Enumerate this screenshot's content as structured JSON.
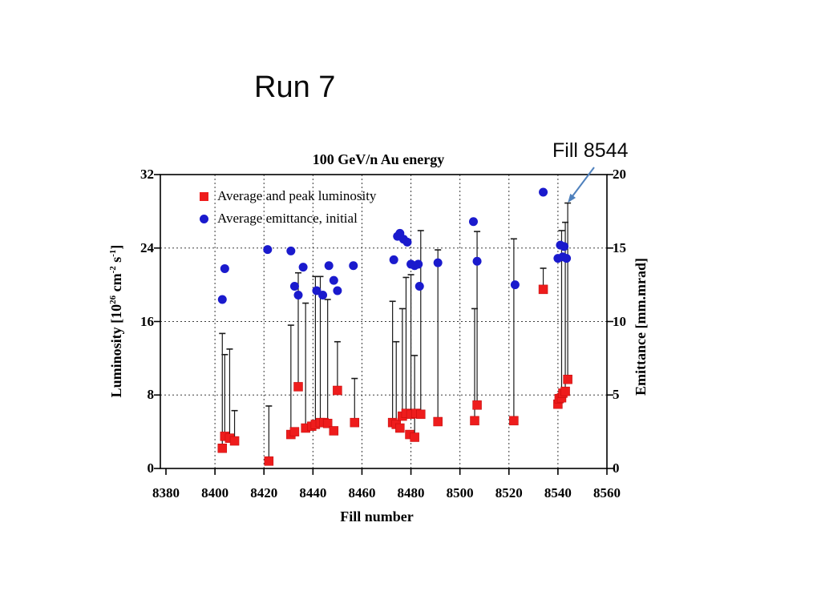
{
  "slide": {
    "title": "Run 7"
  },
  "chart_data": {
    "type": "scatter",
    "title": "100 GeV/n Au energy",
    "xlabel": "Fill number",
    "ylabel_left": "Luminosity [10^26 cm^-2 s^-1]",
    "ylabel_left_parts": [
      {
        "t": "Luminosity [10"
      },
      {
        "t": "26",
        "sup": true
      },
      {
        "t": " cm"
      },
      {
        "t": "-2",
        "sup": true
      },
      {
        "t": " s"
      },
      {
        "t": "-1",
        "sup": true
      },
      {
        "t": "]"
      }
    ],
    "ylabel_right": "Emittance [mm.mrad]",
    "xlim": [
      8378,
      8560
    ],
    "xticks": [
      8380,
      8400,
      8420,
      8440,
      8460,
      8480,
      8500,
      8520,
      8540,
      8560
    ],
    "ylim_left": [
      0,
      32
    ],
    "yticks_left": [
      0,
      8,
      16,
      24,
      32
    ],
    "ylim_right": [
      0,
      20
    ],
    "yticks_right": [
      0,
      5,
      10,
      15,
      20
    ],
    "grid": {
      "x_gridlines": [
        8400,
        8420,
        8440,
        8460,
        8480,
        8500,
        8520,
        8540
      ],
      "y_gridlines_left": [
        8,
        16,
        24
      ]
    },
    "legend": {
      "position": "top-left-inside",
      "items": [
        {
          "label": "Average and peak luminosity",
          "marker": "square",
          "color": "#ee1c1c"
        },
        {
          "label": "Average emittance, initial",
          "marker": "circle",
          "color": "#1a1acd"
        }
      ]
    },
    "series": [
      {
        "name": "Average and peak luminosity",
        "axis": "left",
        "marker": "square",
        "color": "#ee1c1c",
        "error_bar_color": "#1a1a1a",
        "points": [
          {
            "fill": 8403,
            "avg": 2.2,
            "peak": 14.7
          },
          {
            "fill": 8404,
            "avg": 3.5,
            "peak": 12.4
          },
          {
            "fill": 8406,
            "avg": 3.3,
            "peak": 13.0
          },
          {
            "fill": 8408,
            "avg": 3.0,
            "peak": 6.3
          },
          {
            "fill": 8422,
            "avg": 0.8,
            "peak": 6.8
          },
          {
            "fill": 8431,
            "avg": 3.7,
            "peak": 15.6
          },
          {
            "fill": 8432.5,
            "avg": 4.0,
            "peak": null
          },
          {
            "fill": 8434,
            "avg": 8.9,
            "peak": 21.3
          },
          {
            "fill": 8437,
            "avg": 4.4,
            "peak": 18.0
          },
          {
            "fill": 8439.5,
            "avg": 4.6,
            "peak": null
          },
          {
            "fill": 8441,
            "avg": 4.8,
            "peak": 20.9
          },
          {
            "fill": 8443,
            "avg": 5.0,
            "peak": 20.9
          },
          {
            "fill": 8444.5,
            "avg": 5.0,
            "peak": null
          },
          {
            "fill": 8446,
            "avg": 4.9,
            "peak": 18.4
          },
          {
            "fill": 8448.5,
            "avg": 4.1,
            "peak": null
          },
          {
            "fill": 8450,
            "avg": 8.5,
            "peak": 13.8
          },
          {
            "fill": 8457,
            "avg": 5.0,
            "peak": 9.8
          },
          {
            "fill": 8472.5,
            "avg": 5.0,
            "peak": 18.2
          },
          {
            "fill": 8474,
            "avg": 4.8,
            "peak": 13.8
          },
          {
            "fill": 8475.5,
            "avg": 4.4,
            "peak": null
          },
          {
            "fill": 8476.5,
            "avg": 5.7,
            "peak": 17.4
          },
          {
            "fill": 8478,
            "avg": 6.0,
            "peak": 20.8
          },
          {
            "fill": 8479.5,
            "avg": 3.7,
            "peak": null
          },
          {
            "fill": 8480,
            "avg": 5.9,
            "peak": 21.1
          },
          {
            "fill": 8481.5,
            "avg": 3.4,
            "peak": 12.3
          },
          {
            "fill": 8482,
            "avg": 6.0,
            "peak": null
          },
          {
            "fill": 8484,
            "avg": 5.9,
            "peak": 25.9
          },
          {
            "fill": 8491,
            "avg": 5.1,
            "peak": 23.8
          },
          {
            "fill": 8506,
            "avg": 5.2,
            "peak": 17.4
          },
          {
            "fill": 8507,
            "avg": 6.9,
            "peak": 25.8
          },
          {
            "fill": 8522,
            "avg": 5.2,
            "peak": 25.0
          },
          {
            "fill": 8534,
            "avg": 19.5,
            "peak": 21.8
          },
          {
            "fill": 8540,
            "avg": 7.0,
            "peak": null
          },
          {
            "fill": 8540.5,
            "avg": 7.6,
            "peak": null
          },
          {
            "fill": 8541.5,
            "avg": 7.7,
            "peak": 25.9
          },
          {
            "fill": 8542,
            "avg": 8.2,
            "peak": null
          },
          {
            "fill": 8543,
            "avg": 8.4,
            "peak": 26.8
          },
          {
            "fill": 8544,
            "avg": 9.7,
            "peak": 28.9
          }
        ]
      },
      {
        "name": "Average emittance, initial",
        "axis": "right",
        "marker": "circle",
        "color": "#1a1acd",
        "points": [
          {
            "fill": 8403,
            "value": 11.5
          },
          {
            "fill": 8404,
            "value": 13.6
          },
          {
            "fill": 8421.5,
            "value": 14.9
          },
          {
            "fill": 8431,
            "value": 14.8
          },
          {
            "fill": 8432.5,
            "value": 12.4
          },
          {
            "fill": 8434,
            "value": 11.8
          },
          {
            "fill": 8436,
            "value": 13.7
          },
          {
            "fill": 8441.5,
            "value": 12.1
          },
          {
            "fill": 8444,
            "value": 11.8
          },
          {
            "fill": 8446.5,
            "value": 13.8
          },
          {
            "fill": 8448.5,
            "value": 12.8
          },
          {
            "fill": 8450,
            "value": 12.1
          },
          {
            "fill": 8456.5,
            "value": 13.8
          },
          {
            "fill": 8473,
            "value": 14.2
          },
          {
            "fill": 8474.5,
            "value": 15.8
          },
          {
            "fill": 8475.5,
            "value": 16.0
          },
          {
            "fill": 8477,
            "value": 15.6
          },
          {
            "fill": 8478.5,
            "value": 15.4
          },
          {
            "fill": 8480,
            "value": 13.9
          },
          {
            "fill": 8481.5,
            "value": 13.8
          },
          {
            "fill": 8483,
            "value": 13.9
          },
          {
            "fill": 8483.5,
            "value": 12.4
          },
          {
            "fill": 8491,
            "value": 14.0
          },
          {
            "fill": 8505.5,
            "value": 16.8
          },
          {
            "fill": 8507,
            "value": 14.1
          },
          {
            "fill": 8522.5,
            "value": 12.5
          },
          {
            "fill": 8534,
            "value": 18.8
          },
          {
            "fill": 8540,
            "value": 14.3
          },
          {
            "fill": 8541,
            "value": 15.2
          },
          {
            "fill": 8542,
            "value": 14.4
          },
          {
            "fill": 8542.5,
            "value": 15.1
          },
          {
            "fill": 8543.5,
            "value": 14.3
          }
        ]
      }
    ],
    "annotation": {
      "text": "Fill 8544",
      "target_fill": 8544,
      "arrow_color": "#4f81bd"
    }
  }
}
